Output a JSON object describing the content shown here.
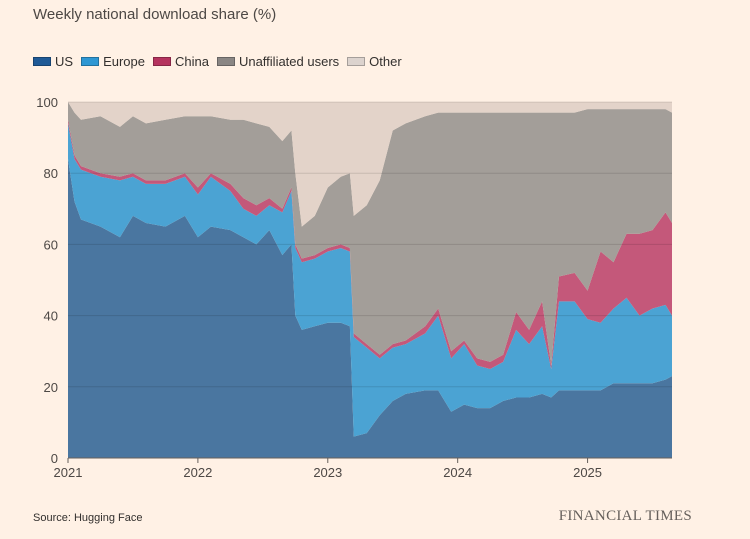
{
  "chart_data": {
    "type": "area",
    "stacked": true,
    "title": "Weekly national download share (%)",
    "xlabel": "",
    "ylabel": "",
    "ylim": [
      0,
      100
    ],
    "xlim": [
      2021.0,
      2025.65
    ],
    "yticks": [
      "0",
      "20",
      "40",
      "60",
      "80",
      "100"
    ],
    "xticks": [
      {
        "value": 2021,
        "label": "2021"
      },
      {
        "value": 2022,
        "label": "2022"
      },
      {
        "value": 2023,
        "label": "2023"
      },
      {
        "value": 2024,
        "label": "2024"
      },
      {
        "value": 2025,
        "label": "2025"
      }
    ],
    "grid": true,
    "legend_position": "top-left",
    "x": [
      2021.0,
      2021.05,
      2021.1,
      2021.25,
      2021.4,
      2021.5,
      2021.6,
      2021.75,
      2021.9,
      2022.0,
      2022.1,
      2022.25,
      2022.35,
      2022.45,
      2022.55,
      2022.65,
      2022.72,
      2022.75,
      2022.8,
      2022.9,
      2023.0,
      2023.1,
      2023.17,
      2023.2,
      2023.3,
      2023.4,
      2023.5,
      2023.6,
      2023.75,
      2023.85,
      2023.95,
      2024.05,
      2024.15,
      2024.25,
      2024.35,
      2024.45,
      2024.55,
      2024.65,
      2024.72,
      2024.78,
      2024.9,
      2025.0,
      2025.1,
      2025.2,
      2025.3,
      2025.4,
      2025.5,
      2025.6,
      2025.65
    ],
    "series": [
      {
        "name": "US",
        "color": "#4a76a0",
        "legend_color": "#1f5a96",
        "values": [
          84,
          72,
          67,
          65,
          62,
          68,
          66,
          65,
          68,
          62,
          65,
          64,
          62,
          60,
          64,
          57,
          60,
          40,
          36,
          37,
          38,
          38,
          37,
          6,
          7,
          12,
          16,
          18,
          19,
          19,
          13,
          15,
          14,
          14,
          16,
          17,
          17,
          18,
          17,
          19,
          19,
          19,
          19,
          21,
          21,
          21,
          21,
          22,
          23
        ]
      },
      {
        "name": "Europe",
        "color": "#4ba3d3",
        "legend_color": "#2e97d3",
        "values": [
          10,
          12,
          14,
          14,
          16,
          11,
          11,
          12,
          11,
          12,
          14,
          11,
          8,
          8,
          7,
          12,
          15,
          19,
          19,
          19,
          20,
          21,
          21,
          28,
          24,
          16,
          15,
          14,
          16,
          21,
          15,
          17,
          12,
          11,
          11,
          19,
          15,
          19,
          8,
          25,
          25,
          20,
          19,
          21,
          24,
          19,
          21,
          21,
          17
        ]
      },
      {
        "name": "China",
        "color": "#c4587a",
        "legend_color": "#b5335e",
        "values": [
          1,
          1,
          1,
          1,
          1,
          1,
          1,
          1,
          1,
          2,
          1,
          2,
          3,
          3,
          2,
          1,
          1,
          1,
          1,
          1,
          1,
          1,
          1,
          1,
          1,
          1,
          1,
          1,
          2,
          2,
          2,
          1,
          2,
          2,
          2,
          5,
          4,
          7,
          1,
          7,
          8,
          8,
          20,
          13,
          18,
          23,
          22,
          26,
          26
        ]
      },
      {
        "name": "Unaffiliated users",
        "color": "#a39e99",
        "legend_color": "#8a8684",
        "values": [
          5,
          12,
          13,
          16,
          14,
          16,
          16,
          17,
          16,
          20,
          16,
          18,
          22,
          23,
          20,
          19,
          16,
          20,
          9,
          11,
          17,
          19,
          21,
          33,
          39,
          49,
          60,
          61,
          59,
          55,
          67,
          64,
          69,
          70,
          68,
          56,
          61,
          53,
          71,
          46,
          45,
          51,
          40,
          43,
          35,
          35,
          34,
          29,
          31
        ]
      },
      {
        "name": "Other",
        "color": "#e3d3c9",
        "legend_color": "#dcd3ce",
        "values": [
          0,
          3,
          5,
          4,
          7,
          4,
          6,
          5,
          4,
          4,
          4,
          5,
          5,
          6,
          7,
          11,
          8,
          20,
          35,
          32,
          24,
          21,
          20,
          32,
          29,
          22,
          8,
          6,
          4,
          3,
          3,
          3,
          3,
          3,
          3,
          3,
          3,
          3,
          3,
          3,
          3,
          2,
          2,
          2,
          2,
          2,
          2,
          2,
          3
        ]
      }
    ]
  },
  "source": "Source: Hugging Face",
  "brand": "FINANCIAL TIMES"
}
